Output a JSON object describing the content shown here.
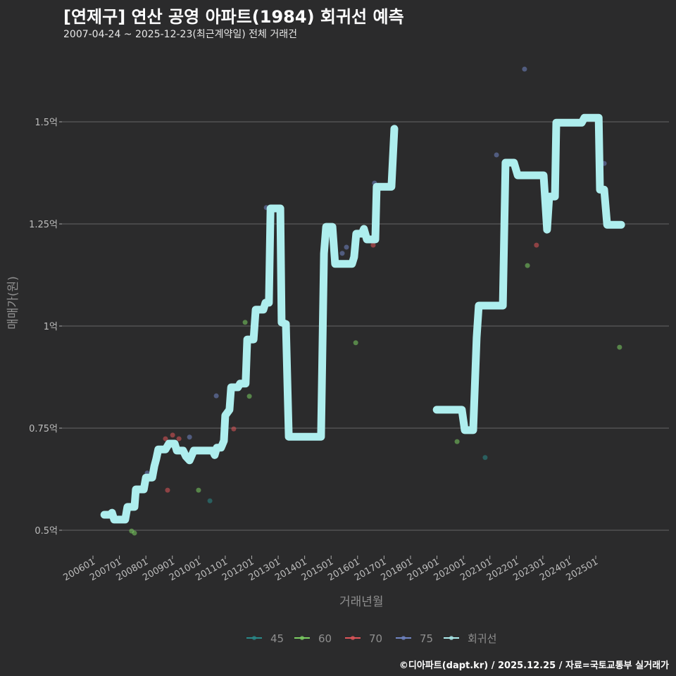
{
  "chart_data": {
    "type": "scatter+line",
    "title": "[연제구] 연산 공영 아파트(1984) 회귀선 예측",
    "subtitle": "2007-04-24 ~ 2025-12-23(최근계약일) 전체 거래건",
    "xlabel": "거래년월",
    "ylabel": "매매가(원)",
    "xlim": [
      2005.85,
      2027.5
    ],
    "ylim": [
      0.43,
      1.7
    ],
    "x_ticks": [
      2006,
      2007,
      2008,
      2009,
      2010,
      2011,
      2012,
      2013,
      2014,
      2015,
      2016,
      2017,
      2018,
      2019,
      2020,
      2021,
      2022,
      2023,
      2024,
      2025
    ],
    "x_tick_labels": [
      "200601",
      "200701",
      "200801",
      "200901",
      "201001",
      "201101",
      "201201",
      "201301",
      "201401",
      "201501",
      "201601",
      "201701",
      "201801",
      "201901",
      "202001",
      "202101",
      "202201",
      "202301",
      "202401",
      "202501"
    ],
    "y_ticks": [
      0.5,
      0.75,
      1.0,
      1.25,
      1.5
    ],
    "y_tick_labels": [
      "0.5억",
      "0.75억",
      "1억",
      "1.25억",
      "1.5억"
    ],
    "grid": true,
    "legend_position": "bottom",
    "series": [
      {
        "name": "45",
        "color": "#2a8a8a",
        "points": [
          [
            2010.42,
            0.572
          ],
          [
            2020.82,
            0.678
          ]
        ]
      },
      {
        "name": "60",
        "color": "#7ccf62",
        "points": [
          [
            2007.46,
            0.498
          ],
          [
            2007.57,
            0.493
          ],
          [
            2009.99,
            0.598
          ],
          [
            2011.75,
            1.009
          ],
          [
            2011.91,
            0.828
          ],
          [
            2015.93,
            0.959
          ],
          [
            2019.76,
            0.717
          ],
          [
            2022.42,
            1.148
          ],
          [
            2025.9,
            0.948
          ]
        ]
      },
      {
        "name": "70",
        "color": "#e0555a",
        "points": [
          [
            2008.82,
            0.598
          ],
          [
            2008.74,
            0.724
          ],
          [
            2009.01,
            0.733
          ],
          [
            2009.25,
            0.724
          ],
          [
            2011.32,
            0.748
          ],
          [
            2016.59,
            1.198
          ],
          [
            2022.76,
            1.198
          ]
        ]
      },
      {
        "name": "75",
        "color": "#7185c4",
        "points": [
          [
            2008.05,
            0.64
          ],
          [
            2009.65,
            0.728
          ],
          [
            2010.66,
            0.829
          ],
          [
            2012.55,
            1.29
          ],
          [
            2015.42,
            1.178
          ],
          [
            2015.58,
            1.193
          ],
          [
            2016.64,
            1.35
          ],
          [
            2021.25,
            1.419
          ],
          [
            2022.31,
            1.629
          ],
          [
            2025.32,
            1.398
          ]
        ]
      },
      {
        "name": "회귀선",
        "color": "#aeeeee",
        "line": [
          [
            2006.43,
            0.538
          ],
          [
            2006.64,
            0.538
          ],
          [
            2006.72,
            0.543
          ],
          [
            2006.8,
            0.526
          ],
          [
            2007.22,
            0.526
          ],
          [
            2007.3,
            0.557
          ],
          [
            2007.57,
            0.557
          ],
          [
            2007.62,
            0.6
          ],
          [
            2007.92,
            0.6
          ],
          [
            2008.0,
            0.629
          ],
          [
            2008.24,
            0.629
          ],
          [
            2008.32,
            0.657
          ],
          [
            2008.39,
            0.674
          ],
          [
            2008.47,
            0.698
          ],
          [
            2008.74,
            0.698
          ],
          [
            2008.87,
            0.712
          ],
          [
            2009.09,
            0.712
          ],
          [
            2009.17,
            0.695
          ],
          [
            2009.41,
            0.695
          ],
          [
            2009.51,
            0.681
          ],
          [
            2009.65,
            0.671
          ],
          [
            2009.81,
            0.695
          ],
          [
            2010.52,
            0.695
          ],
          [
            2010.6,
            0.684
          ],
          [
            2010.68,
            0.702
          ],
          [
            2010.84,
            0.702
          ],
          [
            2010.95,
            0.719
          ],
          [
            2011.0,
            0.781
          ],
          [
            2011.16,
            0.795
          ],
          [
            2011.22,
            0.85
          ],
          [
            2011.48,
            0.85
          ],
          [
            2011.56,
            0.859
          ],
          [
            2011.77,
            0.859
          ],
          [
            2011.83,
            0.967
          ],
          [
            2012.07,
            0.967
          ],
          [
            2012.15,
            1.04
          ],
          [
            2012.44,
            1.04
          ],
          [
            2012.52,
            1.057
          ],
          [
            2012.65,
            1.057
          ],
          [
            2012.71,
            1.288
          ],
          [
            2013.08,
            1.288
          ],
          [
            2013.13,
            1.009
          ],
          [
            2013.29,
            1.005
          ],
          [
            2013.4,
            0.729
          ],
          [
            2014.62,
            0.729
          ],
          [
            2014.73,
            1.178
          ],
          [
            2014.81,
            1.243
          ],
          [
            2015.05,
            1.243
          ],
          [
            2015.15,
            1.152
          ],
          [
            2015.79,
            1.152
          ],
          [
            2015.87,
            1.169
          ],
          [
            2015.95,
            1.226
          ],
          [
            2016.16,
            1.226
          ],
          [
            2016.24,
            1.238
          ],
          [
            2016.35,
            1.212
          ],
          [
            2016.67,
            1.212
          ],
          [
            2016.72,
            1.341
          ],
          [
            2017.28,
            1.341
          ],
          [
            2017.39,
            1.483
          ],
          null,
          [
            2018.99,
            0.795
          ],
          [
            2019.94,
            0.795
          ],
          [
            2020.05,
            0.745
          ],
          [
            2020.37,
            0.745
          ],
          [
            2020.5,
            0.972
          ],
          [
            2020.58,
            1.05
          ],
          [
            2021.49,
            1.05
          ],
          [
            2021.59,
            1.4
          ],
          [
            2021.91,
            1.4
          ],
          [
            2022.05,
            1.369
          ],
          [
            2023.03,
            1.369
          ],
          [
            2023.16,
            1.236
          ],
          [
            2023.24,
            1.317
          ],
          [
            2023.46,
            1.317
          ],
          [
            2023.51,
            1.498
          ],
          [
            2024.47,
            1.498
          ],
          [
            2024.57,
            1.51
          ],
          [
            2025.11,
            1.51
          ],
          [
            2025.16,
            1.334
          ],
          [
            2025.32,
            1.334
          ],
          [
            2025.43,
            1.248
          ],
          [
            2025.96,
            1.248
          ]
        ]
      }
    ]
  },
  "caption": "©디아파트(dapt.kr) / 2025.12.25 / 자료=국토교통부 실거래가"
}
